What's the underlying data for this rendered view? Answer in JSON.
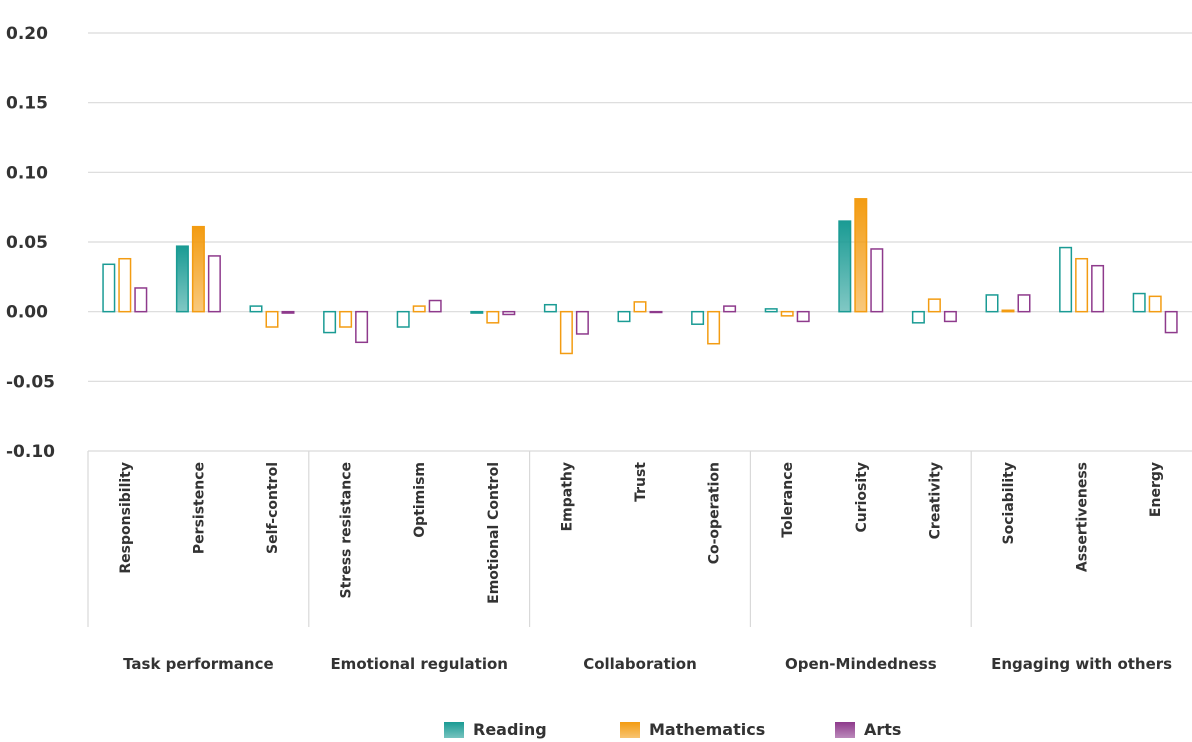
{
  "chart_data": {
    "type": "bar",
    "title": "",
    "xlabel": "",
    "ylabel": "",
    "ylim": [
      -0.1,
      0.2
    ],
    "yticks": [
      "0.20",
      "0.15",
      "0.10",
      "0.05",
      "0.00",
      "-0.05",
      "-0.10"
    ],
    "categories": [
      "Responsibility",
      "Persistence",
      "Self-control",
      "Stress resistance",
      "Optimism",
      "Emotional Control",
      "Empathy",
      "Trust",
      "Co-operation",
      "Tolerance",
      "Curiosity",
      "Creativity",
      "Sociability",
      "Assertiveness",
      "Energy"
    ],
    "groups": [
      {
        "label": "Task performance",
        "categories": [
          "Responsibility",
          "Persistence",
          "Self-control"
        ]
      },
      {
        "label": "Emotional regulation",
        "categories": [
          "Stress resistance",
          "Optimism",
          "Emotional Control"
        ]
      },
      {
        "label": "Collaboration",
        "categories": [
          "Empathy",
          "Trust",
          "Co-operation"
        ]
      },
      {
        "label": "Open-Mindedness",
        "categories": [
          "Tolerance",
          "Curiosity",
          "Creativity"
        ]
      },
      {
        "label": "Engaging with others",
        "categories": [
          "Sociability",
          "Assertiveness",
          "Energy"
        ]
      }
    ],
    "series": [
      {
        "name": "Reading",
        "color": "#1a9b94",
        "values": [
          0.034,
          0.047,
          0.004,
          -0.015,
          -0.011,
          -0.001,
          0.005,
          -0.007,
          -0.009,
          0.002,
          0.065,
          -0.008,
          0.012,
          0.046,
          0.013
        ],
        "filled": [
          false,
          true,
          false,
          false,
          false,
          false,
          false,
          false,
          false,
          false,
          true,
          false,
          false,
          false,
          false
        ]
      },
      {
        "name": "Mathematics",
        "color": "#f39c12",
        "values": [
          0.038,
          0.061,
          -0.011,
          -0.011,
          0.004,
          -0.008,
          -0.03,
          0.007,
          -0.023,
          -0.003,
          0.081,
          0.009,
          0.001,
          0.038,
          0.011
        ],
        "filled": [
          false,
          true,
          false,
          false,
          false,
          false,
          false,
          false,
          false,
          false,
          true,
          false,
          false,
          false,
          false
        ]
      },
      {
        "name": "Arts",
        "color": "#8e3a8c",
        "values": [
          0.017,
          0.04,
          -0.001,
          -0.022,
          0.008,
          -0.002,
          -0.016,
          0.0,
          0.004,
          -0.007,
          0.045,
          -0.007,
          0.012,
          0.033,
          -0.015
        ],
        "filled": [
          false,
          false,
          false,
          false,
          false,
          false,
          false,
          false,
          false,
          false,
          false,
          false,
          false,
          false,
          false
        ]
      }
    ],
    "grid": true,
    "legend_position": "bottom"
  },
  "legend": [
    {
      "label": "Reading",
      "color": "#1a9b94"
    },
    {
      "label": "Mathematics",
      "color": "#f39c12"
    },
    {
      "label": "Arts",
      "color": "#8e3a8c"
    }
  ]
}
